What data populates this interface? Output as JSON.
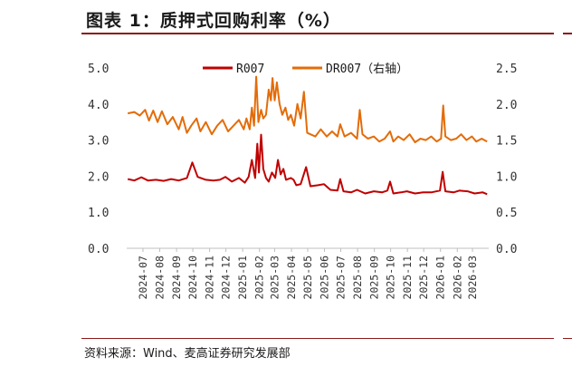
{
  "title": "图表 1：质押式回购利率（%）",
  "source": "资料来源：Wind、麦高证券研究发展部",
  "chart_data": {
    "type": "line",
    "x_tick_labels": [
      "2024-07",
      "2024-08",
      "2024-09",
      "2024-10",
      "2024-11",
      "2024-12",
      "2025-01",
      "2025-02",
      "2025-03",
      "2025-04",
      "2025-05",
      "2025-06",
      "2025-07",
      "2025-08",
      "2025-09",
      "2025-10",
      "2025-11",
      "2025-12",
      "2026-01",
      "2026-02",
      "2026-03"
    ],
    "x_range": [
      "2024-06-01",
      "2026-03-31"
    ],
    "left_axis": {
      "ylim": [
        0.0,
        5.0
      ],
      "ticks": [
        "0.0",
        "1.0",
        "2.0",
        "3.0",
        "4.0",
        "5.0"
      ]
    },
    "right_axis": {
      "ylim": [
        0.0,
        2.5
      ],
      "ticks": [
        "0.0",
        "0.5",
        "1.0",
        "1.5",
        "2.0",
        "2.5"
      ]
    },
    "legend_position": "top-center",
    "series": [
      {
        "name": "R007",
        "axis": "left",
        "color": "#c00000",
        "points": [
          [
            "2024-06-03",
            1.92
          ],
          [
            "2024-06-15",
            1.88
          ],
          [
            "2024-06-28",
            1.97
          ],
          [
            "2024-07-10",
            1.88
          ],
          [
            "2024-07-25",
            1.9
          ],
          [
            "2024-08-08",
            1.87
          ],
          [
            "2024-08-22",
            1.92
          ],
          [
            "2024-09-05",
            1.88
          ],
          [
            "2024-09-20",
            1.95
          ],
          [
            "2024-09-30",
            2.38
          ],
          [
            "2024-10-10",
            1.98
          ],
          [
            "2024-10-25",
            1.9
          ],
          [
            "2024-11-08",
            1.88
          ],
          [
            "2024-11-20",
            1.9
          ],
          [
            "2024-11-30",
            1.98
          ],
          [
            "2024-12-12",
            1.85
          ],
          [
            "2024-12-25",
            1.95
          ],
          [
            "2025-01-05",
            1.82
          ],
          [
            "2025-01-12",
            1.98
          ],
          [
            "2025-01-18",
            2.45
          ],
          [
            "2025-01-24",
            1.95
          ],
          [
            "2025-01-28",
            2.9
          ],
          [
            "2025-01-31",
            2.1
          ],
          [
            "2025-02-04",
            3.15
          ],
          [
            "2025-02-08",
            2.2
          ],
          [
            "2025-02-13",
            1.95
          ],
          [
            "2025-02-18",
            1.85
          ],
          [
            "2025-02-24",
            2.1
          ],
          [
            "2025-03-02",
            1.95
          ],
          [
            "2025-03-07",
            2.45
          ],
          [
            "2025-03-12",
            2.05
          ],
          [
            "2025-03-17",
            2.2
          ],
          [
            "2025-03-22",
            1.9
          ],
          [
            "2025-03-31",
            1.95
          ],
          [
            "2025-04-05",
            1.9
          ],
          [
            "2025-04-10",
            1.75
          ],
          [
            "2025-04-18",
            1.78
          ],
          [
            "2025-04-28",
            2.25
          ],
          [
            "2025-05-06",
            1.72
          ],
          [
            "2025-05-20",
            1.75
          ],
          [
            "2025-05-31",
            1.78
          ],
          [
            "2025-06-12",
            1.62
          ],
          [
            "2025-06-25",
            1.6
          ],
          [
            "2025-06-30",
            1.92
          ],
          [
            "2025-07-06",
            1.58
          ],
          [
            "2025-07-20",
            1.55
          ],
          [
            "2025-07-31",
            1.62
          ],
          [
            "2025-08-15",
            1.52
          ],
          [
            "2025-08-31",
            1.58
          ],
          [
            "2025-09-15",
            1.55
          ],
          [
            "2025-09-25",
            1.6
          ],
          [
            "2025-09-30",
            1.85
          ],
          [
            "2025-10-06",
            1.52
          ],
          [
            "2025-10-20",
            1.55
          ],
          [
            "2025-10-31",
            1.58
          ],
          [
            "2025-11-15",
            1.52
          ],
          [
            "2025-11-30",
            1.55
          ],
          [
            "2025-12-15",
            1.55
          ],
          [
            "2025-12-31",
            1.6
          ],
          [
            "2026-01-05",
            2.12
          ],
          [
            "2026-01-10",
            1.58
          ],
          [
            "2026-01-25",
            1.55
          ],
          [
            "2026-02-05",
            1.6
          ],
          [
            "2026-02-20",
            1.58
          ],
          [
            "2026-03-05",
            1.52
          ],
          [
            "2026-03-20",
            1.55
          ],
          [
            "2026-03-28",
            1.5
          ]
        ]
      },
      {
        "name": "DR007（右轴）",
        "axis": "right",
        "color": "#e36c09",
        "points": [
          [
            "2024-06-03",
            1.87
          ],
          [
            "2024-06-15",
            1.89
          ],
          [
            "2024-06-25",
            1.84
          ],
          [
            "2024-07-05",
            1.92
          ],
          [
            "2024-07-12",
            1.77
          ],
          [
            "2024-07-20",
            1.91
          ],
          [
            "2024-07-28",
            1.75
          ],
          [
            "2024-08-05",
            1.9
          ],
          [
            "2024-08-15",
            1.72
          ],
          [
            "2024-08-25",
            1.82
          ],
          [
            "2024-09-05",
            1.65
          ],
          [
            "2024-09-12",
            1.82
          ],
          [
            "2024-09-20",
            1.6
          ],
          [
            "2024-09-28",
            1.7
          ],
          [
            "2024-10-08",
            1.8
          ],
          [
            "2024-10-15",
            1.62
          ],
          [
            "2024-10-25",
            1.75
          ],
          [
            "2024-11-05",
            1.58
          ],
          [
            "2024-11-15",
            1.7
          ],
          [
            "2024-11-25",
            1.78
          ],
          [
            "2024-12-05",
            1.62
          ],
          [
            "2024-12-15",
            1.7
          ],
          [
            "2024-12-25",
            1.78
          ],
          [
            "2025-01-03",
            1.65
          ],
          [
            "2025-01-08",
            1.8
          ],
          [
            "2025-01-14",
            1.65
          ],
          [
            "2025-01-18",
            1.95
          ],
          [
            "2025-01-22",
            1.7
          ],
          [
            "2025-01-26",
            2.38
          ],
          [
            "2025-01-30",
            1.75
          ],
          [
            "2025-02-04",
            1.92
          ],
          [
            "2025-02-08",
            1.8
          ],
          [
            "2025-02-13",
            1.85
          ],
          [
            "2025-02-18",
            2.2
          ],
          [
            "2025-02-22",
            2.05
          ],
          [
            "2025-02-25",
            2.36
          ],
          [
            "2025-03-01",
            2.05
          ],
          [
            "2025-03-05",
            2.3
          ],
          [
            "2025-03-10",
            2.0
          ],
          [
            "2025-03-15",
            1.85
          ],
          [
            "2025-03-21",
            1.95
          ],
          [
            "2025-03-26",
            1.78
          ],
          [
            "2025-03-31",
            1.85
          ],
          [
            "2025-04-06",
            1.7
          ],
          [
            "2025-04-12",
            2.0
          ],
          [
            "2025-04-18",
            1.8
          ],
          [
            "2025-04-24",
            2.17
          ],
          [
            "2025-04-30",
            1.6
          ],
          [
            "2025-05-06",
            1.58
          ],
          [
            "2025-05-15",
            1.55
          ],
          [
            "2025-05-25",
            1.65
          ],
          [
            "2025-06-05",
            1.55
          ],
          [
            "2025-06-15",
            1.62
          ],
          [
            "2025-06-25",
            1.55
          ],
          [
            "2025-06-30",
            1.72
          ],
          [
            "2025-07-08",
            1.55
          ],
          [
            "2025-07-20",
            1.6
          ],
          [
            "2025-07-31",
            1.52
          ],
          [
            "2025-08-05",
            1.92
          ],
          [
            "2025-08-10",
            1.58
          ],
          [
            "2025-08-20",
            1.52
          ],
          [
            "2025-08-31",
            1.55
          ],
          [
            "2025-09-10",
            1.48
          ],
          [
            "2025-09-20",
            1.52
          ],
          [
            "2025-09-30",
            1.62
          ],
          [
            "2025-10-06",
            1.48
          ],
          [
            "2025-10-15",
            1.55
          ],
          [
            "2025-10-25",
            1.5
          ],
          [
            "2025-11-05",
            1.58
          ],
          [
            "2025-11-15",
            1.47
          ],
          [
            "2025-11-25",
            1.52
          ],
          [
            "2025-12-05",
            1.5
          ],
          [
            "2025-12-15",
            1.55
          ],
          [
            "2025-12-25",
            1.48
          ],
          [
            "2026-01-02",
            1.52
          ],
          [
            "2026-01-06",
            1.98
          ],
          [
            "2026-01-10",
            1.55
          ],
          [
            "2026-01-20",
            1.5
          ],
          [
            "2026-01-30",
            1.52
          ],
          [
            "2026-02-08",
            1.58
          ],
          [
            "2026-02-18",
            1.5
          ],
          [
            "2026-02-28",
            1.55
          ],
          [
            "2026-03-08",
            1.48
          ],
          [
            "2026-03-18",
            1.52
          ],
          [
            "2026-03-28",
            1.48
          ]
        ]
      }
    ]
  }
}
